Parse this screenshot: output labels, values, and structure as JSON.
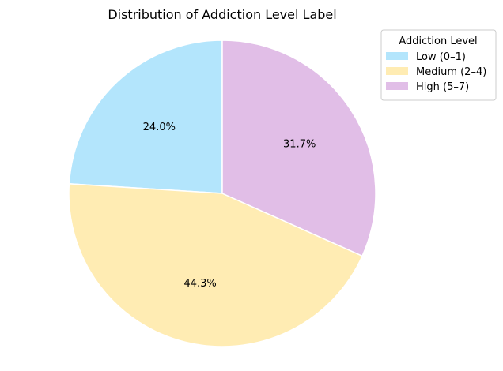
{
  "chart_data": {
    "type": "pie",
    "title": "Distribution of Addiction Level Label",
    "labels": [
      "Low (0–1)",
      "Medium (2–4)",
      "High (5–7)"
    ],
    "values": [
      24.0,
      44.3,
      31.7
    ],
    "autopct_labels": [
      "24.0%",
      "44.3%",
      "31.7%"
    ],
    "colors": [
      "#b3e5fc",
      "#ffecb3",
      "#e1bee7"
    ],
    "start_angle_deg": 90,
    "direction": "counterclockwise",
    "legend": {
      "title": "Addiction Level",
      "placement": "top-right"
    }
  }
}
